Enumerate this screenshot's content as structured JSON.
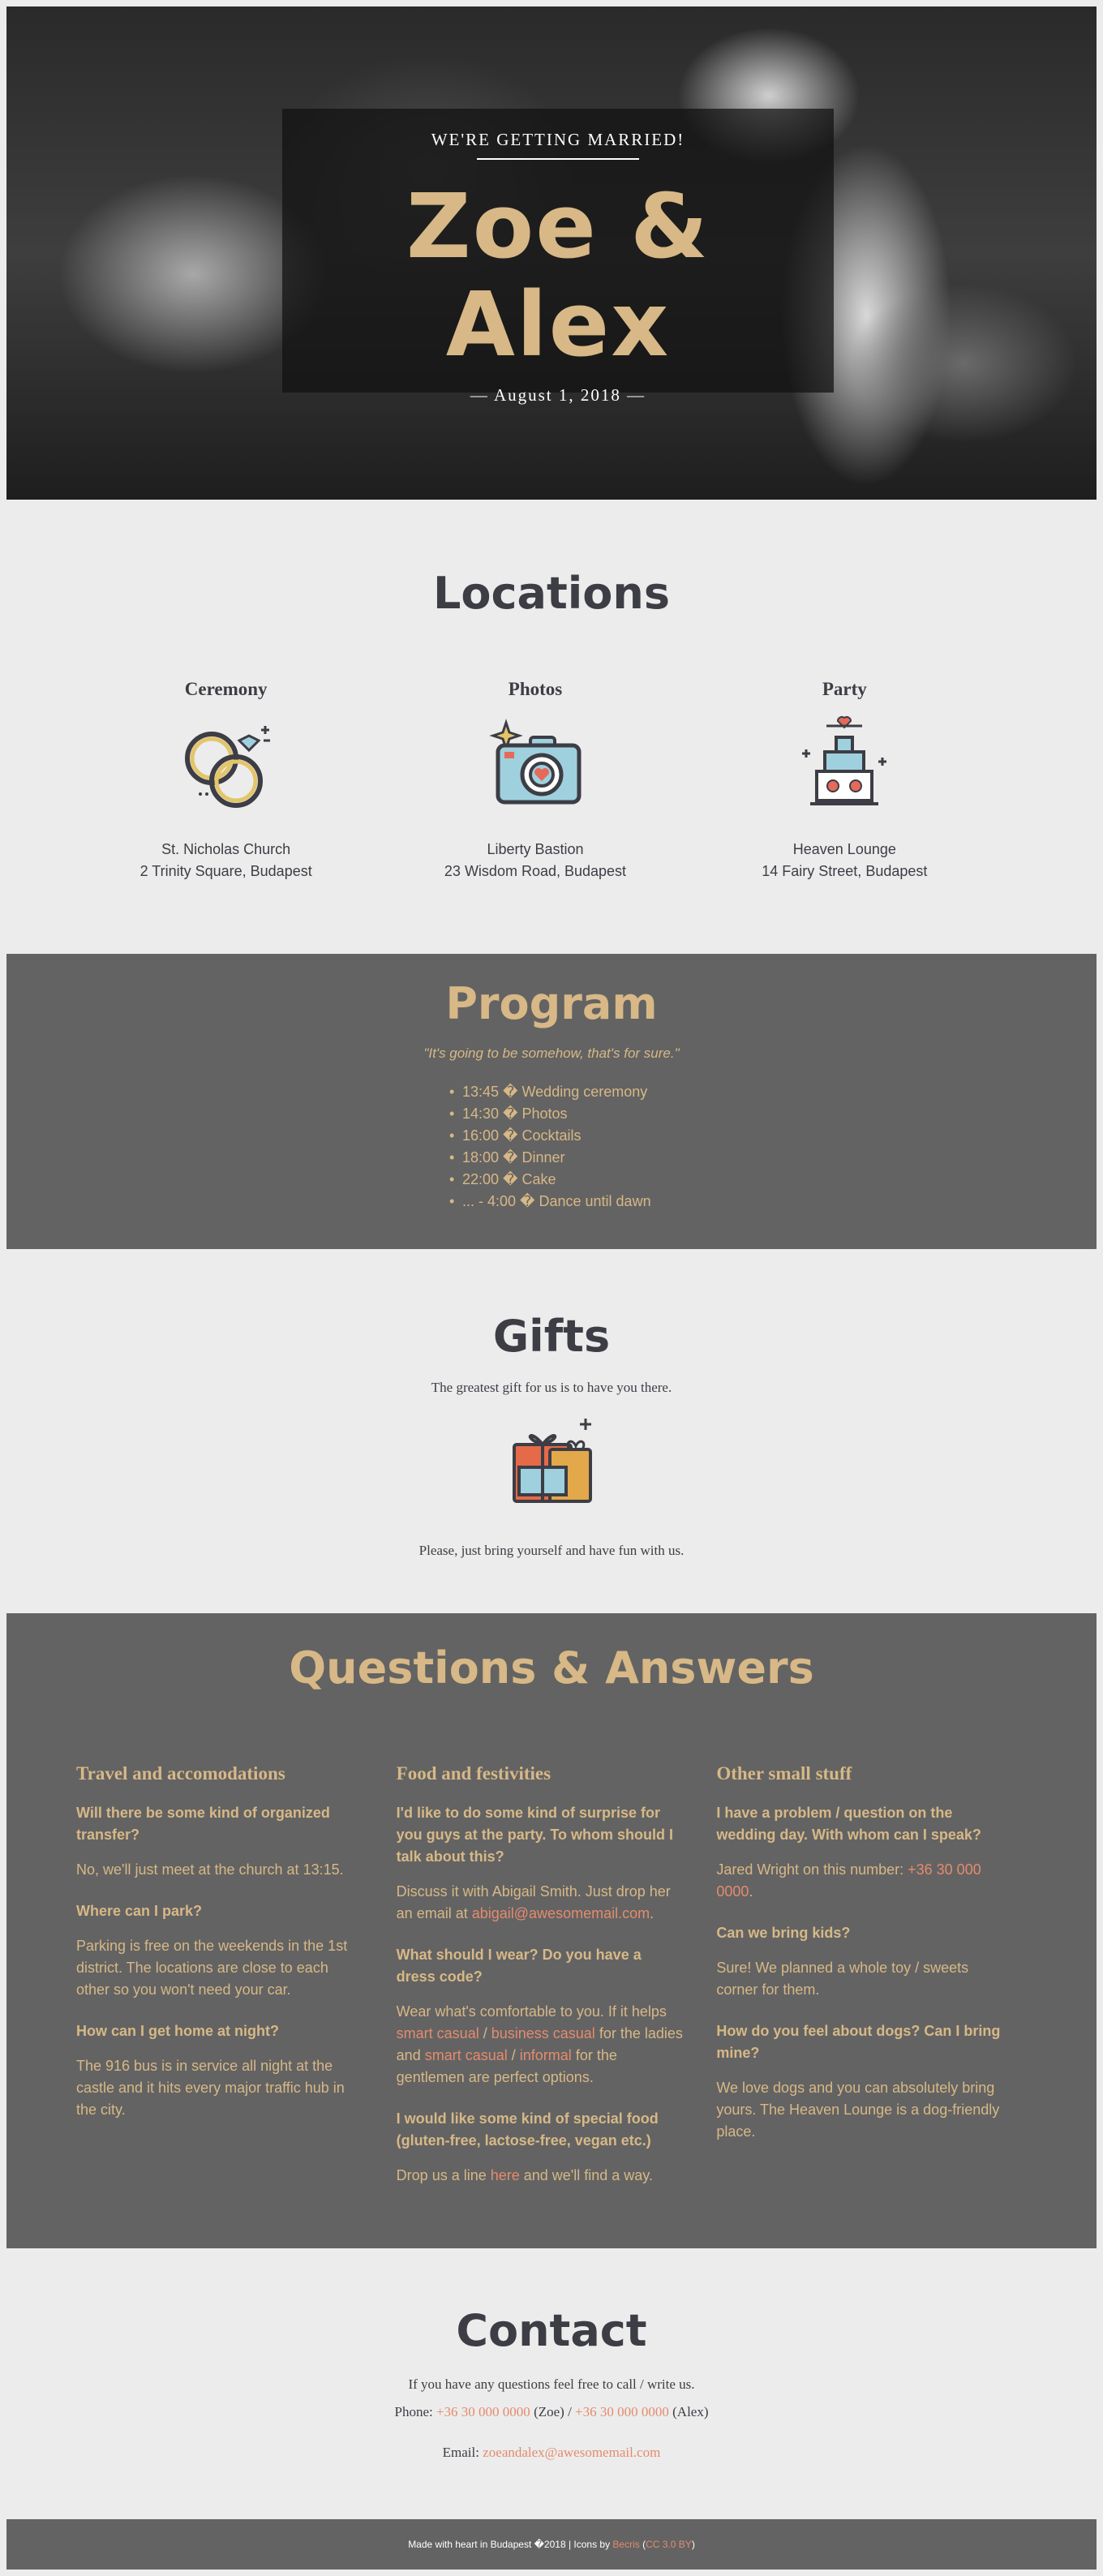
{
  "hero": {
    "kicker": "WE'RE GETTING MARRIED!",
    "names": "Zoe & Alex",
    "date": "— August 1, 2018 —"
  },
  "locations": {
    "title": "Locations",
    "items": [
      {
        "heading": "Ceremony",
        "icon": "rings-icon",
        "place": "St. Nicholas Church",
        "address": "2 Trinity Square, Budapest"
      },
      {
        "heading": "Photos",
        "icon": "camera-icon",
        "place": "Liberty Bastion",
        "address": "23 Wisdom Road, Budapest"
      },
      {
        "heading": "Party",
        "icon": "cake-icon",
        "place": "Heaven Lounge",
        "address": "14 Fairy Street, Budapest"
      }
    ]
  },
  "program": {
    "title": "Program",
    "quote": "\"It's going to be somehow, that's for sure.\"",
    "items": [
      "13:45 � Wedding ceremony",
      "14:30 � Photos",
      "16:00 � Cocktails",
      "18:00 � Dinner",
      "22:00 � Cake",
      "... - 4:00 � Dance until dawn"
    ]
  },
  "gifts": {
    "title": "Gifts",
    "line1": "The greatest gift for us is to have you there.",
    "icon": "gift-icon",
    "line2": "Please, just bring yourself and have fun with us."
  },
  "qa": {
    "title": "Questions & Answers",
    "col1": {
      "heading": "Travel and accomodations",
      "q1": "Will there be some kind of organized transfer?",
      "a1": "No, we'll just meet at the church at 13:15.",
      "q2": "Where can I park?",
      "a2": "Parking is free on the weekends in the 1st district. The locations are close to each other so you won't need your car.",
      "q3": "How can I get home at night?",
      "a3": "The 916 bus is in service all night at the castle and it hits every major traffic hub in the city."
    },
    "col2": {
      "heading": "Food and festivities",
      "q1": "I'd like to do some kind of surprise for you guys at the party. To whom should I talk about this?",
      "a1_pre": "Discuss it with Abigail Smith. Just drop her an email at ",
      "a1_link": "abigail@awesomemail.com",
      "a1_post": ".",
      "q2": "What should I wear? Do you have a dress code?",
      "a2_t1": "Wear what's comfortable to you. If it helps ",
      "a2_l1": "smart casual",
      "a2_t2": " / ",
      "a2_l2": "business casual",
      "a2_t3": " for the ladies and ",
      "a2_l3": "smart casual",
      "a2_t4": " / ",
      "a2_l4": "informal",
      "a2_t5": " for the gentlemen are perfect options.",
      "q3": "I would like some kind of special food (gluten-free, lactose-free, vegan etc.)",
      "a3_pre": "Drop us a line ",
      "a3_link": "here",
      "a3_post": " and we'll find a way."
    },
    "col3": {
      "heading": "Other small stuff",
      "q1": "I have a problem / question on the wedding day. With whom can I speak?",
      "a1_pre": "Jared Wright on this number: ",
      "a1_link": "+36 30 000 0000",
      "a1_post": ".",
      "q2": "Can we bring kids?",
      "a2": "Sure! We planned a whole toy / sweets corner for them.",
      "q3": "How do you feel about dogs? Can I bring mine?",
      "a3": "We love dogs and you can absolutely bring yours. The Heaven Lounge is a dog-friendly place."
    }
  },
  "contact": {
    "title": "Contact",
    "line1": "If you have any questions feel free to call / write us.",
    "phone_label": "Phone: ",
    "phone1": "+36 30 000 0000",
    "phone1_who": " (Zoe) / ",
    "phone2": "+36 30 000 0000",
    "phone2_who": " (Alex)",
    "email_label": "Email: ",
    "email": "zoeandalex@awesomemail.com"
  },
  "footer": {
    "text": "Made with heart in Budapest �2018 | Icons by ",
    "icons_link": "Becris",
    "paren_open": " (",
    "license_link": "CC 3.0 BY",
    "paren_close": ")"
  },
  "colors": {
    "accent_gold": "#d7b886",
    "link_coral": "#e58b6c",
    "dark_band": "#636363",
    "text_dark": "#3d3d45"
  }
}
